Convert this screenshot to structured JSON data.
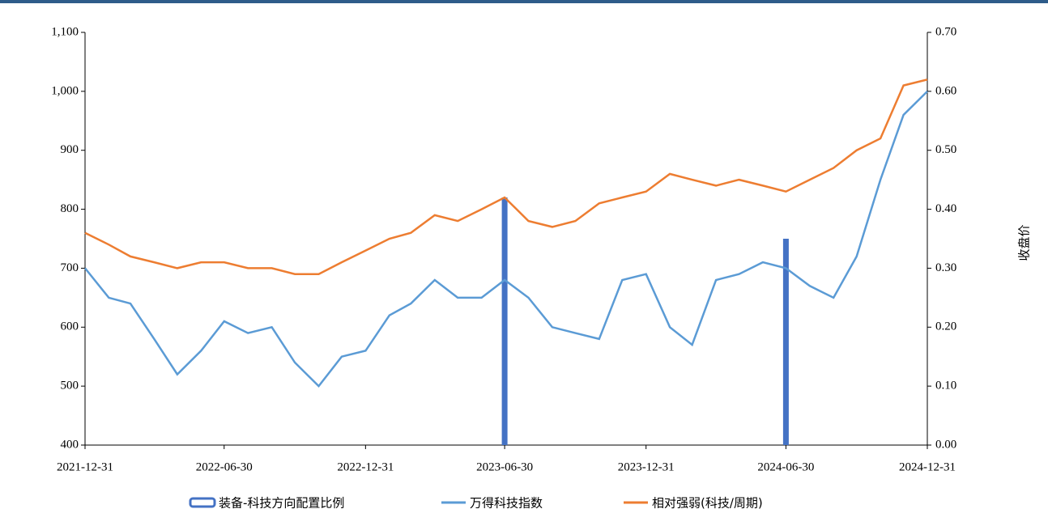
{
  "chart_data": {
    "type": "line",
    "y2label": "收盘价",
    "x": [
      "2021-12-31",
      "2022-01-31",
      "2022-02-28",
      "2022-03-31",
      "2022-04-30",
      "2022-05-31",
      "2022-06-30",
      "2022-07-31",
      "2022-08-31",
      "2022-09-30",
      "2022-10-31",
      "2022-11-30",
      "2022-12-31",
      "2023-01-31",
      "2023-02-28",
      "2023-03-31",
      "2023-04-30",
      "2023-05-31",
      "2023-06-30",
      "2023-07-31",
      "2023-08-31",
      "2023-09-30",
      "2023-10-31",
      "2023-11-30",
      "2023-12-31",
      "2024-01-31",
      "2024-02-29",
      "2024-03-31",
      "2024-04-30",
      "2024-05-31",
      "2024-06-30",
      "2024-07-31",
      "2024-08-31",
      "2024-09-30",
      "2024-10-31",
      "2024-11-30",
      "2024-12-31"
    ],
    "xlim": [
      "2021-12-31",
      "2024-12-31"
    ],
    "xticks": [
      "2021-12-31",
      "2022-06-30",
      "2022-12-31",
      "2023-06-30",
      "2023-12-31",
      "2024-06-30",
      "2024-12-31"
    ],
    "ylim": [
      400,
      1100
    ],
    "yticks": [
      400,
      500,
      600,
      700,
      800,
      900,
      {
        "value": 1000,
        "label": "1,000"
      },
      {
        "value": 1100,
        "label": "1,100"
      }
    ],
    "y2lim": [
      0,
      0.7
    ],
    "y2ticks": [
      {
        "value": 0,
        "label": "0.00"
      },
      {
        "value": 0.1,
        "label": "0.10"
      },
      {
        "value": 0.2,
        "label": "0.20"
      },
      {
        "value": 0.3,
        "label": "0.30"
      },
      {
        "value": 0.4,
        "label": "0.40"
      },
      {
        "value": 0.5,
        "label": "0.50"
      },
      {
        "value": 0.6,
        "label": "0.60"
      },
      {
        "value": 0.7,
        "label": "0.70"
      }
    ],
    "series": [
      {
        "name": "装备-科技方向配置比例",
        "type": "bar",
        "axis": "y2",
        "color": "#4472c4",
        "values": [
          null,
          null,
          null,
          null,
          null,
          null,
          null,
          null,
          null,
          null,
          null,
          null,
          null,
          null,
          null,
          null,
          null,
          null,
          0.42,
          null,
          null,
          null,
          null,
          null,
          null,
          null,
          null,
          null,
          null,
          null,
          0.35,
          null,
          null,
          null,
          null,
          null,
          null
        ]
      },
      {
        "name": "万得科技指数",
        "type": "line",
        "color": "#5b9bd5",
        "values": [
          700,
          650,
          640,
          580,
          520,
          560,
          610,
          590,
          600,
          540,
          500,
          550,
          560,
          620,
          640,
          680,
          650,
          650,
          680,
          650,
          600,
          590,
          580,
          680,
          690,
          600,
          570,
          680,
          690,
          710,
          700,
          670,
          650,
          720,
          850,
          960,
          1000
        ]
      },
      {
        "name": "相对强弱(科技/周期)",
        "type": "line",
        "axis": "y2",
        "color": "#ed7d31",
        "values": [
          0.36,
          0.34,
          0.32,
          0.31,
          0.3,
          0.31,
          0.31,
          0.3,
          0.3,
          0.29,
          0.29,
          0.31,
          0.33,
          0.35,
          0.36,
          0.39,
          0.38,
          0.4,
          0.42,
          0.38,
          0.37,
          0.38,
          0.41,
          0.42,
          0.43,
          0.46,
          0.45,
          0.44,
          0.45,
          0.44,
          0.43,
          0.45,
          0.47,
          0.5,
          0.52,
          0.61,
          0.62
        ]
      }
    ]
  }
}
